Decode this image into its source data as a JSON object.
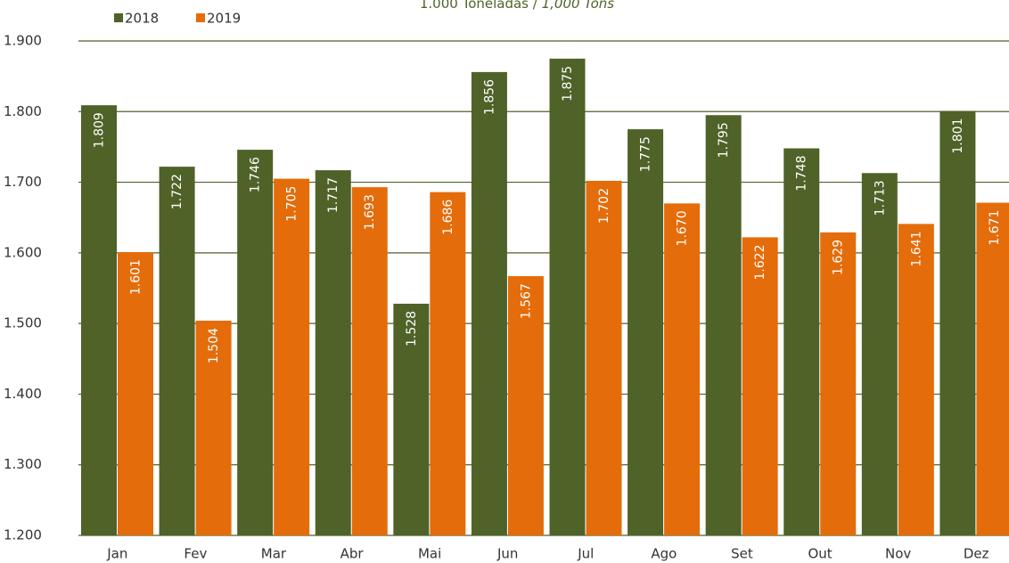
{
  "chart_data": {
    "type": "bar",
    "subtitle": [
      "1.000 Toneladas / ",
      "1,000 Tons"
    ],
    "categories": [
      "Jan",
      "Fev",
      "Mar",
      "Abr",
      "Mai",
      "Jun",
      "Jul",
      "Ago",
      "Set",
      "Out",
      "Nov",
      "Dez"
    ],
    "series": [
      {
        "name": "2018",
        "color": "#4f6228",
        "values": [
          1809,
          1722,
          1746,
          1717,
          1528,
          1856,
          1875,
          1775,
          1795,
          1748,
          1713,
          1801
        ],
        "value_labels": [
          "1.809",
          "1.722",
          "1.746",
          "1.717",
          "1.528",
          "1.856",
          "1.875",
          "1.775",
          "1.795",
          "1.748",
          "1.713",
          "1.801"
        ]
      },
      {
        "name": "2019",
        "color": "#e46c0a",
        "values": [
          1601,
          1504,
          1705,
          1693,
          1686,
          1567,
          1702,
          1670,
          1622,
          1629,
          1641,
          1671
        ],
        "value_labels": [
          "1.601",
          "1.504",
          "1.705",
          "1.693",
          "1.686",
          "1.567",
          "1.702",
          "1.670",
          "1.622",
          "1.629",
          "1.641",
          "1.671"
        ]
      }
    ],
    "ylim": [
      1200,
      1900
    ],
    "yticks": [
      {
        "value": 1200,
        "label": "1.200"
      },
      {
        "value": 1300,
        "label": "1.300"
      },
      {
        "value": 1400,
        "label": "1.400"
      },
      {
        "value": 1500,
        "label": "1.500"
      },
      {
        "value": 1600,
        "label": "1.600"
      },
      {
        "value": 1700,
        "label": "1.700"
      },
      {
        "value": 1800,
        "label": "1.800"
      },
      {
        "value": 1900,
        "label": "1.900"
      }
    ],
    "grid": true,
    "legend": "top-left"
  }
}
